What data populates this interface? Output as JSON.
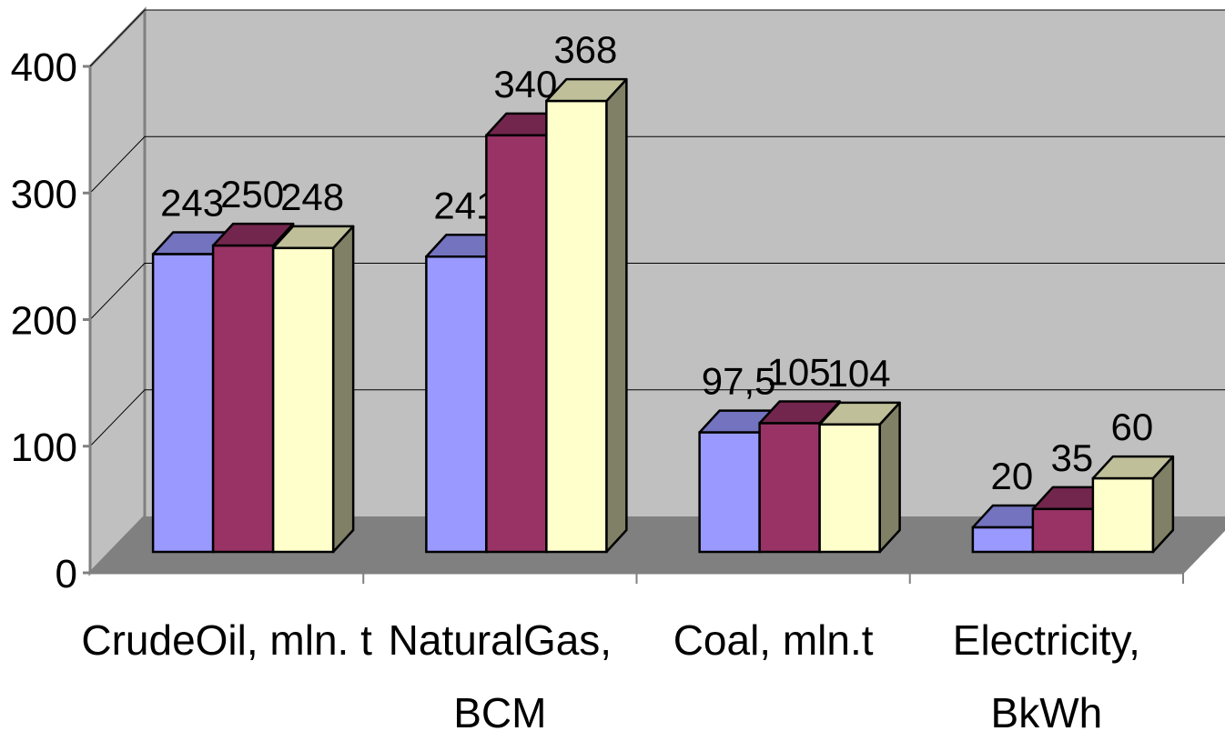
{
  "chart_data": {
    "type": "bar",
    "title": "",
    "xlabel": "",
    "ylabel": "",
    "ylim": [
      0,
      400
    ],
    "yticks": [
      "0",
      "100",
      "200",
      "300",
      "400"
    ],
    "grid": true,
    "legend": "none",
    "categories": [
      [
        "CrudeOil, mln. t"
      ],
      [
        "NaturalGas,",
        "BCM"
      ],
      [
        "Coal, mln.t"
      ],
      [
        "Electricity,",
        "BkWh"
      ]
    ],
    "series": [
      {
        "values": [
          243,
          241,
          97.5,
          20
        ],
        "labels": [
          "243",
          "241",
          "97,5",
          "20"
        ]
      },
      {
        "values": [
          250,
          340,
          105,
          35
        ],
        "labels": [
          "250",
          "340",
          "105",
          "35"
        ]
      },
      {
        "values": [
          248,
          368,
          104,
          60
        ],
        "labels": [
          "248",
          "368",
          "104",
          "60"
        ]
      }
    ]
  },
  "colors": {
    "series_front": [
      "#9999ff",
      "#993366",
      "#ffffcc"
    ],
    "series_top": [
      "#7373bf",
      "#73264d",
      "#bfbf99"
    ],
    "series_side": [
      "#5c5c99",
      "#5c1f3d",
      "#808066"
    ],
    "back_wall": "#c0c0c0",
    "side_wall": "#c0c0c0",
    "floor": "#808080",
    "axis": "#808080",
    "gridline": "#000000"
  }
}
